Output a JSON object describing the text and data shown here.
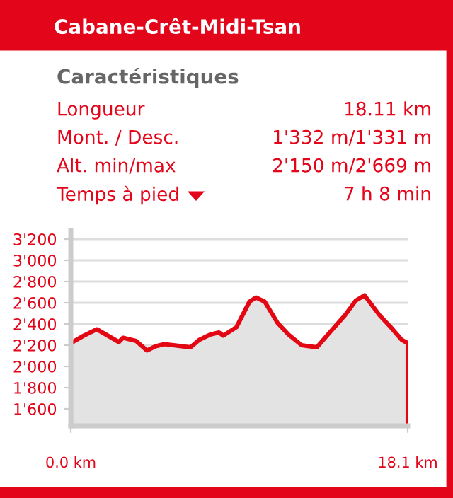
{
  "chart_data": [
    {
      "type": "other",
      "title": "Cabane-Crêt-Midi-Tsan",
      "subtitle": "Caractéristiques",
      "annotations": [
        "Longueur",
        "18.11 km",
        "Mont. / Desc.",
        "1'332 m/1'331 m",
        "Alt. min/max",
        "2'150 m/2'669 m",
        "Temps à pied",
        "7 h 8 min"
      ]
    },
    {
      "type": "area",
      "color": "#e30613",
      "xlim": [
        0,
        18.1
      ],
      "xticks": [
        {
          "value": 0,
          "label": "0.0 km"
        },
        {
          "value": 18.1,
          "label": "18.1 km"
        }
      ],
      "ylim": [
        1440,
        3280
      ],
      "yticks": [
        {
          "value": 1600,
          "label": "1'600"
        },
        {
          "value": 1800,
          "label": "1'800"
        },
        {
          "value": 2000,
          "label": "2'000"
        },
        {
          "value": 2200,
          "label": "2'200"
        },
        {
          "value": 2400,
          "label": "2'400"
        },
        {
          "value": 2600,
          "label": "2'600"
        },
        {
          "value": 2800,
          "label": "2'800"
        },
        {
          "value": 3000,
          "label": "3'000"
        },
        {
          "value": 3200,
          "label": "3'200"
        }
      ],
      "grid": "y",
      "x": [
        0,
        0.7,
        1.4,
        1.99,
        2.58,
        2.81,
        3.51,
        4.09,
        4.56,
        5.03,
        6.43,
        6.9,
        7.49,
        7.96,
        8.19,
        8.9,
        9.6,
        9.95,
        10.42,
        11.11,
        11.7,
        12.4,
        13.22,
        13.81,
        14.72,
        15.31,
        15.78,
        16.6,
        17.19,
        17.78,
        18.1
      ],
      "values": [
        2220,
        2290,
        2350,
        2290,
        2230,
        2270,
        2240,
        2150,
        2190,
        2210,
        2180,
        2250,
        2300,
        2320,
        2290,
        2370,
        2610,
        2650,
        2610,
        2410,
        2300,
        2200,
        2180,
        2300,
        2480,
        2620,
        2670,
        2480,
        2370,
        2250,
        2220
      ]
    }
  ]
}
